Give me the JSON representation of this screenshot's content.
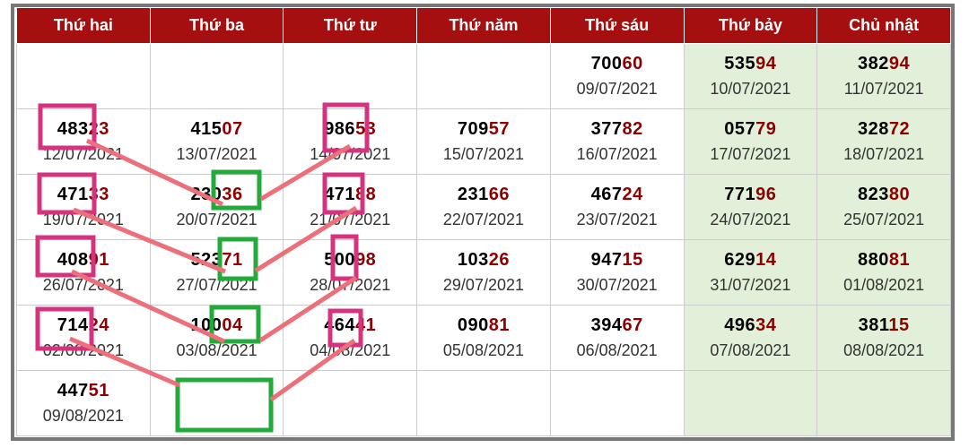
{
  "headers": [
    "Thứ hai",
    "Thứ ba",
    "Thứ tư",
    "Thứ năm",
    "Thứ sáu",
    "Thứ bảy",
    "Chủ nhật"
  ],
  "rows": [
    [
      null,
      null,
      null,
      null,
      {
        "h": "700",
        "t": "60",
        "d": "09/07/2021"
      },
      {
        "h": "535",
        "t": "94",
        "d": "10/07/2021"
      },
      {
        "h": "382",
        "t": "94",
        "d": "11/07/2021"
      }
    ],
    [
      {
        "h": "483",
        "t": "23",
        "d": "12/07/2021"
      },
      {
        "h": "415",
        "t": "07",
        "d": "13/07/2021"
      },
      {
        "h": "986",
        "t": "53",
        "d": "14/07/2021"
      },
      {
        "h": "709",
        "t": "57",
        "d": "15/07/2021"
      },
      {
        "h": "377",
        "t": "82",
        "d": "16/07/2021"
      },
      {
        "h": "057",
        "t": "79",
        "d": "17/07/2021"
      },
      {
        "h": "328",
        "t": "72",
        "d": "18/07/2021"
      }
    ],
    [
      {
        "h": "471",
        "t": "33",
        "d": "19/07/2021"
      },
      {
        "h": "230",
        "t": "36",
        "d": "20/07/2021"
      },
      {
        "h": "471",
        "t": "88",
        "d": "21/07/2021"
      },
      {
        "h": "231",
        "t": "66",
        "d": "22/07/2021"
      },
      {
        "h": "467",
        "t": "24",
        "d": "23/07/2021"
      },
      {
        "h": "771",
        "t": "96",
        "d": "24/07/2021"
      },
      {
        "h": "823",
        "t": "80",
        "d": "25/07/2021"
      }
    ],
    [
      {
        "h": "408",
        "t": "91",
        "d": "26/07/2021"
      },
      {
        "h": "523",
        "t": "71",
        "d": "27/07/2021"
      },
      {
        "h": "500",
        "t": "98",
        "d": "28/07/2021"
      },
      {
        "h": "103",
        "t": "26",
        "d": "29/07/2021"
      },
      {
        "h": "947",
        "t": "15",
        "d": "30/07/2021"
      },
      {
        "h": "629",
        "t": "14",
        "d": "31/07/2021"
      },
      {
        "h": "880",
        "t": "81",
        "d": "01/08/2021"
      }
    ],
    [
      {
        "h": "714",
        "t": "24",
        "d": "02/08/2021"
      },
      {
        "h": "100",
        "t": "04",
        "d": "03/08/2021"
      },
      {
        "h": "464",
        "t": "41",
        "d": "04/08/2021"
      },
      {
        "h": "090",
        "t": "81",
        "d": "05/08/2021"
      },
      {
        "h": "394",
        "t": "67",
        "d": "06/08/2021"
      },
      {
        "h": "496",
        "t": "34",
        "d": "07/08/2021"
      },
      {
        "h": "381",
        "t": "15",
        "d": "08/08/2021"
      }
    ],
    [
      {
        "h": "447",
        "t": "51",
        "d": "09/08/2021"
      },
      null,
      null,
      null,
      null,
      null,
      null
    ]
  ],
  "colors": {
    "header": "#a50f0f",
    "weekend": "#e2f0d9",
    "tail": "#8b0000",
    "pink_box": "#d6337f",
    "green_box": "#22aa3a",
    "line": "#ec6f7a"
  }
}
